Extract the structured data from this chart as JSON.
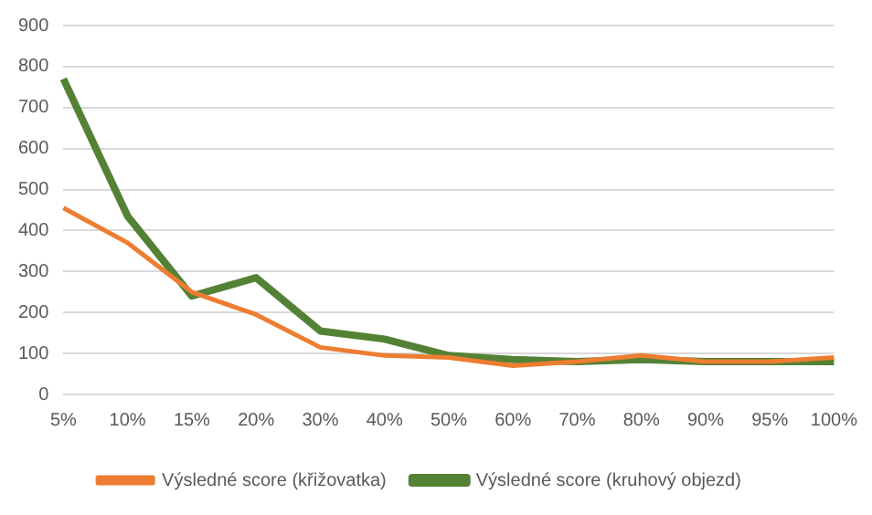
{
  "chart_data": {
    "type": "line",
    "categories": [
      "5%",
      "10%",
      "15%",
      "20%",
      "30%",
      "40%",
      "50%",
      "60%",
      "70%",
      "80%",
      "90%",
      "95%",
      "100%"
    ],
    "series": [
      {
        "name": "Výsledné score (křižovatka)",
        "color": "#ed7d31",
        "values": [
          455,
          370,
          250,
          195,
          115,
          95,
          90,
          70,
          80,
          95,
          80,
          80,
          90
        ]
      },
      {
        "name": "Výsledné score (kruhový objezd)",
        "color": "#548235",
        "values": [
          770,
          435,
          240,
          285,
          155,
          135,
          95,
          85,
          80,
          85,
          80,
          80,
          80
        ]
      }
    ],
    "ylim": [
      0,
      900
    ],
    "yticks": [
      0,
      100,
      200,
      300,
      400,
      500,
      600,
      700,
      800,
      900
    ],
    "grid": "y",
    "legend": "bottom"
  }
}
